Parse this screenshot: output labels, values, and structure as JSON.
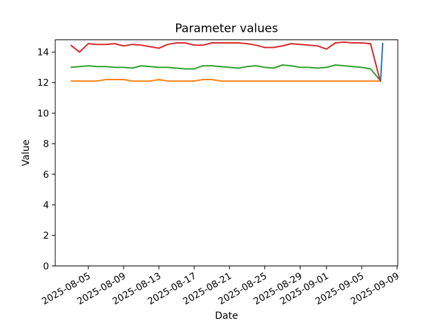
{
  "chart_data": {
    "type": "line",
    "title": "Parameter values",
    "xlabel": "Date",
    "ylabel": "Value",
    "grid": false,
    "legend_position": "none",
    "axes_color": "#000000",
    "background_color": "#ffffff",
    "ylim": [
      0,
      14.8
    ],
    "y_ticks": [
      0,
      2,
      4,
      6,
      8,
      10,
      12,
      14
    ],
    "xlim": [
      "2025-08-01T06:00Z",
      "2025-09-09T02:00Z"
    ],
    "x_ticks": [
      "2025-08-05",
      "2025-08-09",
      "2025-08-13",
      "2025-08-17",
      "2025-08-21",
      "2025-08-25",
      "2025-08-29",
      "2025-09-01",
      "2025-09-05",
      "2025-09-09"
    ],
    "x_tick_rotation_deg": 30,
    "x": [
      "2025-08-03",
      "2025-08-04",
      "2025-08-05",
      "2025-08-06",
      "2025-08-07",
      "2025-08-08",
      "2025-08-09",
      "2025-08-10",
      "2025-08-11",
      "2025-08-12",
      "2025-08-13",
      "2025-08-14",
      "2025-08-15",
      "2025-08-16",
      "2025-08-17",
      "2025-08-18",
      "2025-08-19",
      "2025-08-20",
      "2025-08-21",
      "2025-08-22",
      "2025-08-23",
      "2025-08-24",
      "2025-08-25",
      "2025-08-26",
      "2025-08-27",
      "2025-08-28",
      "2025-08-29",
      "2025-08-30",
      "2025-08-31",
      "2025-09-01",
      "2025-09-02",
      "2025-09-03",
      "2025-09-04",
      "2025-09-05",
      "2025-09-06",
      "2025-09-07T02:00Z"
    ],
    "series": [
      {
        "name": "blue",
        "color": "#1f77b4",
        "points": [
          [
            "2025-09-07T03:00Z",
            12.05
          ],
          [
            "2025-09-07T09:00Z",
            14.6
          ]
        ]
      },
      {
        "name": "orange",
        "color": "#ff7f0e",
        "values": [
          12.1,
          12.1,
          12.1,
          12.1,
          12.2,
          12.2,
          12.2,
          12.1,
          12.1,
          12.1,
          12.2,
          12.1,
          12.1,
          12.1,
          12.1,
          12.2,
          12.2,
          12.1,
          12.1,
          12.1,
          12.1,
          12.1,
          12.1,
          12.1,
          12.1,
          12.1,
          12.1,
          12.1,
          12.1,
          12.1,
          12.1,
          12.1,
          12.1,
          12.1,
          12.1,
          12.1
        ]
      },
      {
        "name": "green",
        "color": "#2ca02c",
        "values": [
          13.0,
          13.05,
          13.1,
          13.05,
          13.05,
          13.0,
          13.0,
          12.95,
          13.1,
          13.05,
          13.0,
          13.0,
          12.95,
          12.9,
          12.9,
          13.1,
          13.1,
          13.05,
          13.0,
          12.95,
          13.05,
          13.1,
          13.0,
          12.95,
          13.15,
          13.1,
          13.0,
          13.0,
          12.95,
          13.0,
          13.15,
          13.1,
          13.05,
          13.0,
          12.9,
          12.15
        ]
      },
      {
        "name": "red",
        "color": "#d62728",
        "values": [
          14.45,
          14.0,
          14.55,
          14.5,
          14.5,
          14.55,
          14.4,
          14.5,
          14.45,
          14.35,
          14.25,
          14.5,
          14.6,
          14.6,
          14.45,
          14.45,
          14.6,
          14.6,
          14.6,
          14.6,
          14.55,
          14.45,
          14.3,
          14.3,
          14.4,
          14.55,
          14.5,
          14.45,
          14.4,
          14.2,
          14.6,
          14.65,
          14.6,
          14.6,
          14.55,
          12.1
        ]
      }
    ]
  }
}
